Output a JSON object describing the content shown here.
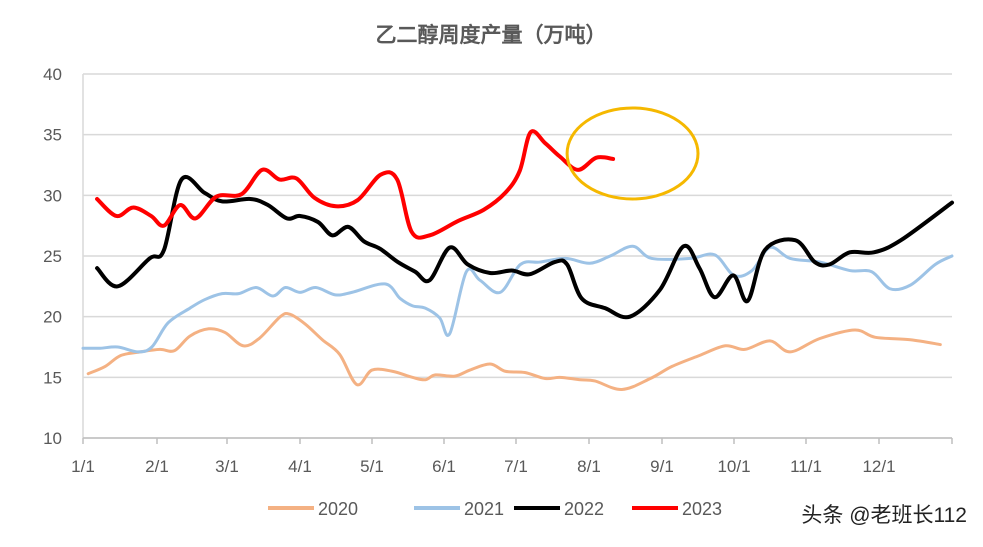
{
  "chart_data": {
    "type": "line",
    "title": "乙二醇周度产量（万吨）",
    "xlabel": "",
    "ylabel": "",
    "ylim": [
      10,
      40
    ],
    "yticks": [
      "10",
      "15",
      "20",
      "25",
      "30",
      "35",
      "40"
    ],
    "xlim_months": [
      0,
      12
    ],
    "xticks": [
      "1/1",
      "2/1",
      "3/1",
      "4/1",
      "5/1",
      "6/1",
      "7/1",
      "8/1",
      "9/1",
      "10/1",
      "11/1",
      "12/1"
    ],
    "grid": true,
    "legend_position": "bottom",
    "series": [
      {
        "name": "2020",
        "color": "#F4B183",
        "points": [
          [
            0.07,
            15.3
          ],
          [
            0.3,
            15.9
          ],
          [
            0.51,
            16.8
          ],
          [
            0.78,
            17.1
          ],
          [
            1.04,
            17.3
          ],
          [
            1.25,
            17.2
          ],
          [
            1.47,
            18.4
          ],
          [
            1.74,
            19.0
          ],
          [
            1.97,
            18.7
          ],
          [
            2.22,
            17.6
          ],
          [
            2.44,
            18.2
          ],
          [
            2.73,
            20.0
          ],
          [
            2.86,
            20.2
          ],
          [
            3.07,
            19.4
          ],
          [
            3.31,
            18.1
          ],
          [
            3.55,
            16.9
          ],
          [
            3.79,
            14.4
          ],
          [
            4.0,
            15.6
          ],
          [
            4.28,
            15.5
          ],
          [
            4.56,
            15.0
          ],
          [
            4.74,
            14.8
          ],
          [
            4.88,
            15.2
          ],
          [
            5.15,
            15.1
          ],
          [
            5.36,
            15.6
          ],
          [
            5.64,
            16.1
          ],
          [
            5.85,
            15.5
          ],
          [
            6.12,
            15.4
          ],
          [
            6.4,
            14.9
          ],
          [
            6.6,
            15.0
          ],
          [
            6.88,
            14.8
          ],
          [
            7.08,
            14.7
          ],
          [
            7.45,
            14.0
          ],
          [
            7.84,
            14.9
          ],
          [
            8.14,
            15.9
          ],
          [
            8.52,
            16.8
          ],
          [
            8.88,
            17.6
          ],
          [
            9.15,
            17.3
          ],
          [
            9.5,
            18.0
          ],
          [
            9.78,
            17.1
          ],
          [
            10.19,
            18.2
          ],
          [
            10.67,
            18.9
          ],
          [
            10.95,
            18.3
          ],
          [
            11.43,
            18.1
          ],
          [
            11.84,
            17.7
          ]
        ]
      },
      {
        "name": "2021",
        "color": "#9DC3E6",
        "points": [
          [
            0,
            17.4
          ],
          [
            0.23,
            17.4
          ],
          [
            0.47,
            17.5
          ],
          [
            0.74,
            17.1
          ],
          [
            0.93,
            17.5
          ],
          [
            1.16,
            19.5
          ],
          [
            1.47,
            20.7
          ],
          [
            1.68,
            21.4
          ],
          [
            1.93,
            21.9
          ],
          [
            2.16,
            21.9
          ],
          [
            2.4,
            22.4
          ],
          [
            2.63,
            21.7
          ],
          [
            2.8,
            22.4
          ],
          [
            3.0,
            22.0
          ],
          [
            3.22,
            22.4
          ],
          [
            3.49,
            21.8
          ],
          [
            3.72,
            22.0
          ],
          [
            4.18,
            22.7
          ],
          [
            4.39,
            21.5
          ],
          [
            4.56,
            20.9
          ],
          [
            4.74,
            20.7
          ],
          [
            4.94,
            19.9
          ],
          [
            5.08,
            18.6
          ],
          [
            5.31,
            23.7
          ],
          [
            5.5,
            23.0
          ],
          [
            5.78,
            22.0
          ],
          [
            6.06,
            24.3
          ],
          [
            6.33,
            24.5
          ],
          [
            6.68,
            24.8
          ],
          [
            7.01,
            24.4
          ],
          [
            7.29,
            25.0
          ],
          [
            7.6,
            25.8
          ],
          [
            7.86,
            24.8
          ],
          [
            8.39,
            24.8
          ],
          [
            8.73,
            25.1
          ],
          [
            9.0,
            23.4
          ],
          [
            9.25,
            23.8
          ],
          [
            9.5,
            25.7
          ],
          [
            9.78,
            24.8
          ],
          [
            10.19,
            24.5
          ],
          [
            10.6,
            23.8
          ],
          [
            10.9,
            23.7
          ],
          [
            11.15,
            22.3
          ],
          [
            11.43,
            22.6
          ],
          [
            11.77,
            24.3
          ],
          [
            12,
            25.0
          ]
        ]
      },
      {
        "name": "2022",
        "color": "#000000",
        "points": [
          [
            0.19,
            24.0
          ],
          [
            0.47,
            22.5
          ],
          [
            0.9,
            24.8
          ],
          [
            1.1,
            25.5
          ],
          [
            1.35,
            31.3
          ],
          [
            1.68,
            30.2
          ],
          [
            1.93,
            29.5
          ],
          [
            2.32,
            29.7
          ],
          [
            2.56,
            29.2
          ],
          [
            2.82,
            28.1
          ],
          [
            3.0,
            28.3
          ],
          [
            3.25,
            27.8
          ],
          [
            3.45,
            26.7
          ],
          [
            3.67,
            27.4
          ],
          [
            3.89,
            26.2
          ],
          [
            4.11,
            25.6
          ],
          [
            4.36,
            24.5
          ],
          [
            4.6,
            23.7
          ],
          [
            4.8,
            23.0
          ],
          [
            5.08,
            25.7
          ],
          [
            5.33,
            24.3
          ],
          [
            5.64,
            23.6
          ],
          [
            5.94,
            23.8
          ],
          [
            6.19,
            23.5
          ],
          [
            6.53,
            24.5
          ],
          [
            6.7,
            24.3
          ],
          [
            6.9,
            21.5
          ],
          [
            7.22,
            20.7
          ],
          [
            7.56,
            20.0
          ],
          [
            7.97,
            22.2
          ],
          [
            8.3,
            25.8
          ],
          [
            8.52,
            24.0
          ],
          [
            8.73,
            21.6
          ],
          [
            8.99,
            23.4
          ],
          [
            9.19,
            21.3
          ],
          [
            9.43,
            25.5
          ],
          [
            9.85,
            26.3
          ],
          [
            10.12,
            24.5
          ],
          [
            10.32,
            24.3
          ],
          [
            10.6,
            25.3
          ],
          [
            10.93,
            25.3
          ],
          [
            11.3,
            26.3
          ],
          [
            12,
            29.4
          ]
        ]
      },
      {
        "name": "2023",
        "color": "#FF0000",
        "points": [
          [
            0.19,
            29.7
          ],
          [
            0.45,
            28.3
          ],
          [
            0.68,
            29.0
          ],
          [
            0.92,
            28.3
          ],
          [
            1.1,
            27.5
          ],
          [
            1.33,
            29.2
          ],
          [
            1.55,
            28.1
          ],
          [
            1.85,
            29.9
          ],
          [
            2.2,
            30.1
          ],
          [
            2.48,
            32.1
          ],
          [
            2.72,
            31.3
          ],
          [
            2.95,
            31.4
          ],
          [
            3.2,
            29.8
          ],
          [
            3.5,
            29.1
          ],
          [
            3.8,
            29.6
          ],
          [
            4.12,
            31.7
          ],
          [
            4.35,
            31.3
          ],
          [
            4.55,
            27.0
          ],
          [
            4.8,
            26.7
          ],
          [
            5.2,
            27.9
          ],
          [
            5.55,
            28.8
          ],
          [
            5.85,
            30.2
          ],
          [
            6.05,
            32.0
          ],
          [
            6.2,
            35.2
          ],
          [
            6.4,
            34.3
          ],
          [
            6.6,
            33.2
          ],
          [
            6.85,
            32.1
          ],
          [
            7.1,
            33.1
          ],
          [
            7.33,
            33.0
          ]
        ]
      }
    ],
    "annotations": [
      {
        "type": "ellipse",
        "color": "#F5B800",
        "around_series": "2023",
        "x_months": [
          6.7,
          8.5
        ],
        "y_range": [
          29.7,
          37.2
        ]
      }
    ]
  },
  "watermark": "头条 @老班长112"
}
